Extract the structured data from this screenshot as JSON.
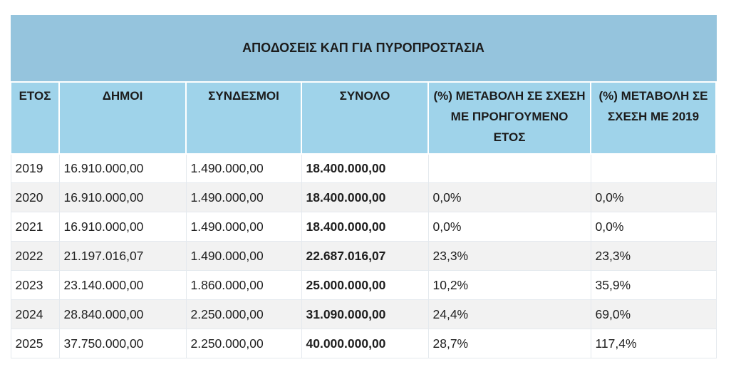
{
  "table": {
    "title": "ΑΠΟΔΟΣΕΙΣ ΚΑΠ ΓΙΑ ΠΥΡΟΠΡΟΣΤΑΣΙΑ",
    "headers": {
      "year": "ΕΤΟΣ",
      "municipalities": "ΔΗΜΟΙ",
      "associations": "ΣΥΝΔΕΣΜΟΙ",
      "total": "ΣΥΝΟΛΟ",
      "change_prev": "(%) ΜΕΤΑΒΟΛΗ ΣΕ ΣΧΕΣΗ ΜΕ ΠΡΟΗΓΟΥΜΕΝΟ ΕΤΟΣ",
      "change_2019": "(%) ΜΕΤΑΒΟΛΗ ΣΕ ΣΧΕΣΗ ΜΕ 2019"
    },
    "rows": [
      {
        "year": "2019",
        "municipalities": "16.910.000,00",
        "associations": "1.490.000,00",
        "total": "18.400.000,00",
        "change_prev": "",
        "change_2019": ""
      },
      {
        "year": "2020",
        "municipalities": "16.910.000,00",
        "associations": "1.490.000,00",
        "total": "18.400.000,00",
        "change_prev": "0,0%",
        "change_2019": "0,0%"
      },
      {
        "year": "2021",
        "municipalities": "16.910.000,00",
        "associations": "1.490.000,00",
        "total": "18.400.000,00",
        "change_prev": "0,0%",
        "change_2019": "0,0%"
      },
      {
        "year": "2022",
        "municipalities": "21.197.016,07",
        "associations": "1.490.000,00",
        "total": "22.687.016,07",
        "change_prev": "23,3%",
        "change_2019": "23,3%"
      },
      {
        "year": "2023",
        "municipalities": "23.140.000,00",
        "associations": "1.860.000,00",
        "total": "25.000.000,00",
        "change_prev": "10,2%",
        "change_2019": "35,9%"
      },
      {
        "year": "2024",
        "municipalities": "28.840.000,00",
        "associations": "2.250.000,00",
        "total": "31.090.000,00",
        "change_prev": "24,4%",
        "change_2019": "69,0%"
      },
      {
        "year": "2025",
        "municipalities": "37.750.000,00",
        "associations": "2.250.000,00",
        "total": "40.000.000,00",
        "change_prev": "28,7%",
        "change_2019": "117,4%"
      }
    ]
  }
}
